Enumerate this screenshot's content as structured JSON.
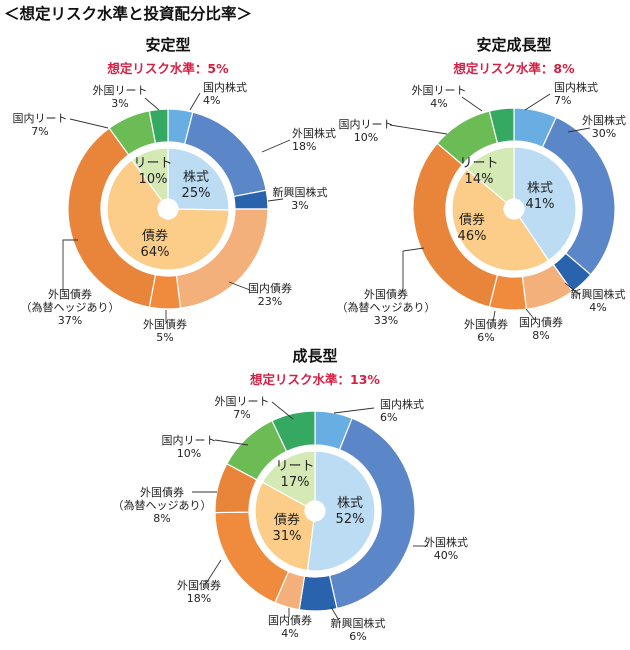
{
  "page_title": "＜想定リスク水準と投資配分比率＞",
  "colors": {
    "risk_label": "#d61f43",
    "outer": {
      "国内株式": "#69aee3",
      "外国株式": "#5b87c9",
      "新興国株式": "#2a63ad",
      "国内債券": "#f4b07b",
      "外国債券": "#f08a3c",
      "外国債券（為替ヘッジあり）": "#e9843b",
      "国内リート": "#6cbc55",
      "外国リート": "#35a862"
    },
    "inner": {
      "株式": "#bcdcf4",
      "債券": "#fbcd88",
      "リート": "#d5e9b5"
    }
  },
  "chart_data": [
    {
      "type": "pie",
      "title": "安定型",
      "subtitle": "想定リスク水準：5%",
      "outer": [
        {
          "label": "国内株式",
          "value": 4,
          "text": "4%"
        },
        {
          "label": "外国株式",
          "value": 18,
          "text": "18%"
        },
        {
          "label": "新興国株式",
          "value": 3,
          "text": "3%"
        },
        {
          "label": "国内債券",
          "value": 23,
          "text": "23%"
        },
        {
          "label": "外国債券",
          "value": 5,
          "text": "5%"
        },
        {
          "label": "外国債券（為替ヘッジあり）",
          "value": 37,
          "text": "37%"
        },
        {
          "label": "国内リート",
          "value": 7,
          "text": "7%"
        },
        {
          "label": "外国リート",
          "value": 3,
          "text": "3%"
        }
      ],
      "inner": [
        {
          "label": "株式",
          "value": 25,
          "text": "25%"
        },
        {
          "label": "債券",
          "value": 64,
          "text": "64%"
        },
        {
          "label": "リート",
          "value": 10,
          "text": "10%"
        }
      ]
    },
    {
      "type": "pie",
      "title": "安定成長型",
      "subtitle": "想定リスク水準：8%",
      "outer": [
        {
          "label": "国内株式",
          "value": 7,
          "text": "7%"
        },
        {
          "label": "外国株式",
          "value": 30,
          "text": "30%"
        },
        {
          "label": "新興国株式",
          "value": 4,
          "text": "4%"
        },
        {
          "label": "国内債券",
          "value": 8,
          "text": "8%"
        },
        {
          "label": "外国債券",
          "value": 6,
          "text": "6%"
        },
        {
          "label": "外国債券（為替ヘッジあり）",
          "value": 33,
          "text": "33%"
        },
        {
          "label": "国内リート",
          "value": 10,
          "text": "10%"
        },
        {
          "label": "外国リート",
          "value": 4,
          "text": "4%"
        }
      ],
      "inner": [
        {
          "label": "株式",
          "value": 41,
          "text": "41%"
        },
        {
          "label": "債券",
          "value": 46,
          "text": "46%"
        },
        {
          "label": "リート",
          "value": 14,
          "text": "14%"
        }
      ]
    },
    {
      "type": "pie",
      "title": "成長型",
      "subtitle": "想定リスク水準：13%",
      "outer": [
        {
          "label": "国内株式",
          "value": 6,
          "text": "6%"
        },
        {
          "label": "外国株式",
          "value": 40,
          "text": "40%"
        },
        {
          "label": "新興国株式",
          "value": 6,
          "text": "6%"
        },
        {
          "label": "国内債券",
          "value": 4,
          "text": "4%"
        },
        {
          "label": "外国債券",
          "value": 18,
          "text": "18%"
        },
        {
          "label": "外国債券（為替ヘッジあり）",
          "value": 8,
          "text": "8%"
        },
        {
          "label": "国内リート",
          "value": 10,
          "text": "10%"
        },
        {
          "label": "外国リート",
          "value": 7,
          "text": "7%"
        }
      ],
      "inner": [
        {
          "label": "株式",
          "value": 52,
          "text": "52%"
        },
        {
          "label": "債券",
          "value": 31,
          "text": "31%"
        },
        {
          "label": "リート",
          "value": 17,
          "text": "17%"
        }
      ]
    }
  ]
}
